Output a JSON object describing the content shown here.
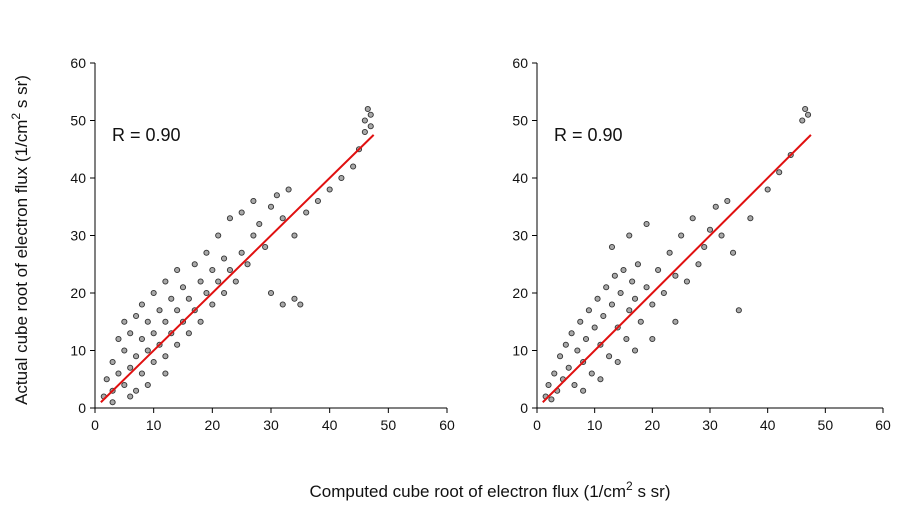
{
  "x_label": [
    "Computed cube root of electron flux  (1/cm",
    "2",
    " s sr)"
  ],
  "y_label": [
    "Actual cube root of electron flux  (1/cm",
    "2",
    " s sr)"
  ],
  "chart_data": [
    {
      "type": "scatter",
      "annotation": "R = 0.90",
      "xlim": [
        0,
        60
      ],
      "ylim": [
        0,
        60
      ],
      "xticks": [
        0,
        10,
        20,
        30,
        40,
        50,
        60
      ],
      "yticks": [
        0,
        10,
        20,
        30,
        40,
        50,
        60
      ],
      "color": "#a8a8a8",
      "x": [
        1.5,
        2,
        3,
        3,
        4,
        4,
        5,
        5,
        5,
        6,
        6,
        7,
        7,
        7,
        8,
        8,
        8,
        9,
        9,
        10,
        10,
        10,
        11,
        11,
        12,
        12,
        12,
        13,
        13,
        14,
        14,
        14,
        15,
        15,
        16,
        16,
        17,
        17,
        18,
        18,
        19,
        19,
        20,
        20,
        21,
        21,
        22,
        22,
        23,
        23,
        24,
        25,
        25,
        26,
        27,
        27,
        28,
        29,
        30,
        31,
        32,
        33,
        30,
        32,
        34,
        35,
        34,
        36,
        38,
        40,
        42,
        44,
        45,
        46,
        47,
        46.5,
        46,
        47,
        3,
        6,
        9,
        12
      ],
      "y": [
        2,
        5,
        3,
        8,
        6,
        12,
        4,
        10,
        15,
        7,
        13,
        3,
        9,
        16,
        6,
        12,
        18,
        10,
        15,
        8,
        13,
        20,
        11,
        17,
        9,
        15,
        22,
        13,
        19,
        11,
        17,
        24,
        15,
        21,
        13,
        19,
        17,
        25,
        15,
        22,
        20,
        27,
        18,
        24,
        22,
        30,
        20,
        26,
        24,
        33,
        22,
        27,
        34,
        25,
        30,
        36,
        32,
        28,
        35,
        37,
        33,
        38,
        20,
        18,
        19,
        18,
        30,
        34,
        36,
        38,
        40,
        42,
        45,
        48,
        51,
        52,
        50,
        49,
        1,
        2,
        4,
        6
      ],
      "fit": {
        "x": [
          1,
          47.5
        ],
        "y": [
          1,
          47.5
        ],
        "color": "#e01010"
      }
    },
    {
      "type": "scatter",
      "annotation": "R = 0.90",
      "xlim": [
        0,
        60
      ],
      "ylim": [
        0,
        60
      ],
      "xticks": [
        0,
        10,
        20,
        30,
        40,
        50,
        60
      ],
      "yticks": [
        0,
        10,
        20,
        30,
        40,
        50,
        60
      ],
      "color": "#a8a8a8",
      "x": [
        1.5,
        2,
        2.5,
        3,
        3.5,
        4,
        4.5,
        5,
        5.5,
        6,
        6.5,
        7,
        7.5,
        8,
        8.5,
        9,
        9.5,
        10,
        10.5,
        11,
        11.5,
        12,
        12.5,
        13,
        13.5,
        14,
        14.5,
        15,
        15.5,
        16,
        16.5,
        17,
        17.5,
        18,
        19,
        20,
        21,
        22,
        23,
        24,
        25,
        26,
        27,
        28,
        29,
        30,
        31,
        32,
        33,
        34,
        35,
        37,
        40,
        42,
        44,
        46,
        46.5,
        47,
        8,
        11,
        14,
        17,
        20,
        24,
        13,
        16,
        19
      ],
      "y": [
        2,
        4,
        1.5,
        6,
        3,
        9,
        5,
        11,
        7,
        13,
        4,
        10,
        15,
        8,
        12,
        17,
        6,
        14,
        19,
        11,
        16,
        21,
        9,
        18,
        23,
        14,
        20,
        24,
        12,
        17,
        22,
        19,
        25,
        15,
        21,
        18,
        24,
        20,
        27,
        23,
        30,
        22,
        33,
        25,
        28,
        31,
        35,
        30,
        36,
        27,
        17,
        33,
        38,
        41,
        44,
        50,
        52,
        51,
        3,
        5,
        8,
        10,
        12,
        15,
        28,
        30,
        32
      ],
      "fit": {
        "x": [
          1,
          47.5
        ],
        "y": [
          1,
          47.5
        ],
        "color": "#e01010"
      }
    }
  ]
}
